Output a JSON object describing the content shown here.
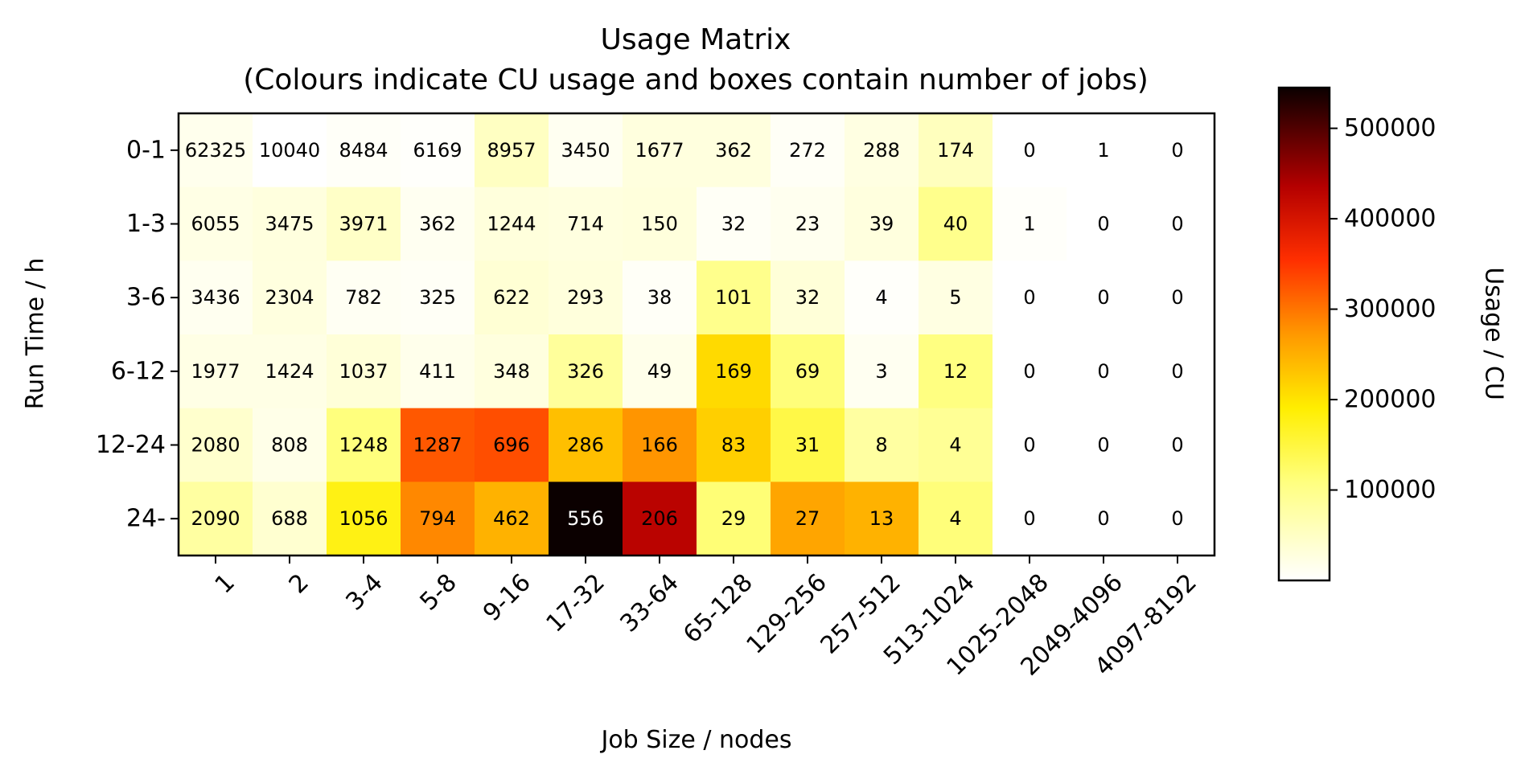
{
  "chart_data": {
    "type": "heatmap",
    "title": "Usage Matrix",
    "subtitle": "(Colours indicate CU usage and boxes contain number of jobs)",
    "xlabel": "Job Size / nodes",
    "ylabel": "Run Time / h",
    "colorbar_label": "Usage / CU",
    "colormap": "hot_r",
    "color_range": [
      0,
      545000
    ],
    "colorbar_ticks": [
      "100000",
      "200000",
      "300000",
      "400000",
      "500000"
    ],
    "colorbar_tick_values": [
      100000,
      200000,
      300000,
      400000,
      500000
    ],
    "x_categories": [
      "1",
      "2",
      "3-4",
      "5-8",
      "9-16",
      "17-32",
      "33-64",
      "65-128",
      "129-256",
      "257-512",
      "513-1024",
      "1025-2048",
      "2049-4096",
      "4097-8192"
    ],
    "y_categories": [
      "0-1",
      "1-3",
      "3-6",
      "6-12",
      "12-24",
      "24-"
    ],
    "job_counts": [
      [
        "62325",
        "10040",
        "8484",
        "6169",
        "8957",
        "3450",
        "1677",
        "362",
        "272",
        "288",
        "174",
        "0",
        "1",
        "0"
      ],
      [
        "6055",
        "3475",
        "3971",
        "362",
        "1244",
        "714",
        "150",
        "32",
        "23",
        "39",
        "40",
        "1",
        "0",
        "0"
      ],
      [
        "3436",
        "2304",
        "782",
        "325",
        "622",
        "293",
        "38",
        "101",
        "32",
        "4",
        "5",
        "0",
        "0",
        "0"
      ],
      [
        "1977",
        "1424",
        "1037",
        "411",
        "348",
        "326",
        "49",
        "169",
        "69",
        "3",
        "12",
        "0",
        "0",
        "0"
      ],
      [
        "2080",
        "808",
        "1248",
        "1287",
        "696",
        "286",
        "166",
        "83",
        "31",
        "8",
        "4",
        "0",
        "0",
        "0"
      ],
      [
        "2090",
        "688",
        "1056",
        "794",
        "462",
        "556",
        "206",
        "29",
        "27",
        "13",
        "4",
        "0",
        "0",
        "0"
      ]
    ],
    "usage_cu": [
      [
        15000,
        0,
        6000,
        3000,
        52000,
        12000,
        28000,
        28000,
        8000,
        25000,
        55000,
        0,
        0,
        0
      ],
      [
        22000,
        28000,
        48000,
        12000,
        30000,
        27000,
        30000,
        8000,
        14000,
        28000,
        98000,
        4000,
        0,
        0
      ],
      [
        13000,
        27000,
        10000,
        8000,
        37000,
        30000,
        7000,
        98000,
        33000,
        4000,
        25000,
        0,
        0,
        0
      ],
      [
        22000,
        22000,
        33000,
        17000,
        28000,
        85000,
        18000,
        210000,
        112000,
        12000,
        107000,
        0,
        0,
        0
      ],
      [
        43000,
        20000,
        110000,
        322000,
        330000,
        235000,
        275000,
        220000,
        145000,
        80000,
        90000,
        0,
        0,
        0
      ],
      [
        80000,
        40000,
        178000,
        285000,
        248000,
        545000,
        430000,
        115000,
        260000,
        248000,
        112000,
        0,
        0,
        0
      ]
    ]
  }
}
